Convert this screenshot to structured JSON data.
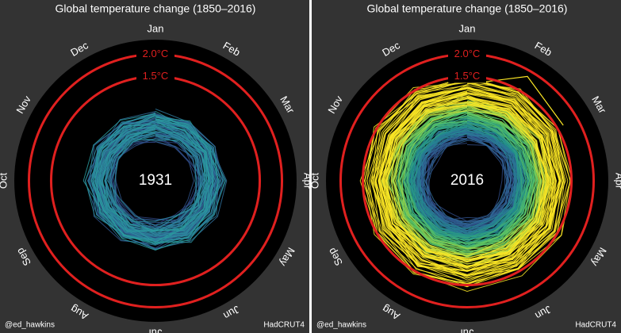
{
  "chart_data": [
    {
      "type": "polar",
      "title": "Global temperature change (1850–2016)",
      "categories": [
        "Jan",
        "Feb",
        "Mar",
        "Apr",
        "May",
        "Jun",
        "Jul",
        "Aug",
        "Sep",
        "Oct",
        "Nov",
        "Dec"
      ],
      "rlim": [
        -0.85,
        2.33
      ],
      "rticks": [
        {
          "value": 1.5,
          "label": "1.5°C"
        },
        {
          "value": 2.0,
          "label": "2.0°C"
        }
      ],
      "ring_color": "#e0201f",
      "center_label": "1931",
      "credit_left": "@ed_hawkins",
      "credit_right": "HadCRUT4"
    },
    {
      "type": "polar",
      "title": "Global temperature change (1850–2016)",
      "categories": [
        "Jan",
        "Feb",
        "Mar",
        "Apr",
        "May",
        "Jun",
        "Jul",
        "Aug",
        "Sep",
        "Oct",
        "Nov",
        "Dec"
      ],
      "rlim": [
        -0.85,
        2.33
      ],
      "rticks": [
        {
          "value": 1.5,
          "label": "1.5°C"
        },
        {
          "value": 2.0,
          "label": "2.0°C"
        }
      ],
      "ring_color": "#e0201f",
      "center_label": "2016",
      "credit_left": "@ed_hawkins",
      "credit_right": "HadCRUT4"
    }
  ]
}
